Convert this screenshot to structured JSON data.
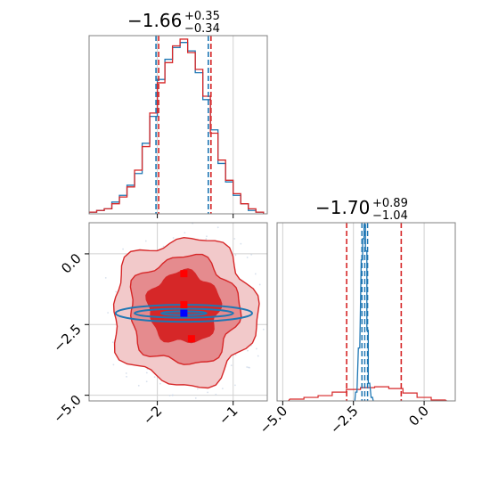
{
  "chart_data": [
    {
      "type": "histogram",
      "panel": "top-left",
      "title": {
        "median": "−1.66",
        "plus": "+0.35",
        "minus": "−0.34"
      },
      "xlim": [
        -2.9,
        -0.55
      ],
      "x_ticks": [
        -2,
        -1
      ],
      "grid": true,
      "series": [
        {
          "color": "#d62728",
          "quantiles": [
            -2.0,
            -1.66,
            -1.31
          ]
        },
        {
          "color": "#1f77b4",
          "quantiles": [
            -2.0,
            -1.66,
            -1.31
          ]
        }
      ],
      "bin_edges": [
        -2.9,
        -2.8,
        -2.7,
        -2.6,
        -2.5,
        -2.4,
        -2.3,
        -2.2,
        -2.1,
        -2.0,
        -1.9,
        -1.8,
        -1.7,
        -1.6,
        -1.5,
        -1.4,
        -1.3,
        -1.2,
        -1.1,
        -1.0,
        -0.9,
        -0.8,
        -0.7,
        -0.6
      ],
      "counts_red": [
        1,
        2,
        3,
        6,
        10,
        16,
        26,
        40,
        60,
        78,
        90,
        100,
        104,
        96,
        86,
        70,
        48,
        32,
        20,
        12,
        6,
        3,
        1
      ],
      "counts_blue": [
        1,
        2,
        3,
        7,
        11,
        17,
        24,
        42,
        58,
        80,
        92,
        99,
        102,
        97,
        84,
        68,
        50,
        30,
        19,
        11,
        6,
        2,
        1
      ]
    },
    {
      "type": "contour",
      "panel": "bottom-left",
      "xlim": [
        -2.9,
        -0.55
      ],
      "ylim": [
        -5.2,
        1.1
      ],
      "x_ticks": [
        -2,
        -1
      ],
      "y_ticks": [
        0.0,
        -2.5,
        -5.0
      ],
      "y_tick_labels": [
        "0.0",
        "−2.5",
        "−5.0"
      ],
      "x_tick_labels": [
        "−2",
        "−1"
      ],
      "grid": true,
      "red_markers": [
        [
          -1.65,
          -0.7
        ],
        [
          -1.65,
          -1.8
        ],
        [
          -1.55,
          -3.0
        ]
      ],
      "blue_markers": [
        [
          -1.65,
          -2.1
        ]
      ],
      "red_contours": [
        {
          "cx": -1.65,
          "cy": -1.9,
          "rx": 0.47,
          "ry": 1.25
        },
        {
          "cx": -1.65,
          "cy": -2.0,
          "rx": 0.72,
          "ry": 1.9
        },
        {
          "cx": -1.65,
          "cy": -2.05,
          "rx": 0.95,
          "ry": 2.6
        }
      ],
      "blue_contours": [
        {
          "cx": -1.65,
          "cy": -2.1,
          "rx": 0.3,
          "ry": 0.07
        },
        {
          "cx": -1.65,
          "cy": -2.1,
          "rx": 0.65,
          "ry": 0.16
        },
        {
          "cx": -1.65,
          "cy": -2.1,
          "rx": 0.9,
          "ry": 0.3
        }
      ]
    },
    {
      "type": "histogram",
      "panel": "bottom-right",
      "title": {
        "median": "−1.70",
        "plus": "+0.89",
        "minus": "−1.04"
      },
      "xlim": [
        -5.2,
        1.1
      ],
      "x_ticks": [
        -5.0,
        -2.5,
        0.0
      ],
      "x_tick_labels": [
        "−5.0",
        "−2.5",
        "0.0"
      ],
      "grid": true,
      "red_quantiles": [
        -2.74,
        -1.7,
        -0.81
      ],
      "blue_quantiles": [
        -2.2,
        -2.1,
        -2.0
      ],
      "red_counts": [
        {
          "x": -4.5,
          "y": 0.01
        },
        {
          "x": -4.0,
          "y": 0.02
        },
        {
          "x": -3.5,
          "y": 0.03
        },
        {
          "x": -3.0,
          "y": 0.05
        },
        {
          "x": -2.5,
          "y": 0.065
        },
        {
          "x": -2.0,
          "y": 0.075
        },
        {
          "x": -1.5,
          "y": 0.08
        },
        {
          "x": -1.0,
          "y": 0.07
        },
        {
          "x": -0.5,
          "y": 0.045
        },
        {
          "x": 0.0,
          "y": 0.02
        },
        {
          "x": 0.5,
          "y": 0.005
        }
      ],
      "blue_counts": [
        {
          "x": -2.4,
          "y": 0.05
        },
        {
          "x": -2.3,
          "y": 0.3
        },
        {
          "x": -2.2,
          "y": 0.8
        },
        {
          "x": -2.15,
          "y": 0.92
        },
        {
          "x": -2.1,
          "y": 1.0
        },
        {
          "x": -2.05,
          "y": 0.85
        },
        {
          "x": -2.0,
          "y": 0.4
        },
        {
          "x": -1.95,
          "y": 0.1
        },
        {
          "x": -1.85,
          "y": 0.02
        }
      ]
    }
  ]
}
